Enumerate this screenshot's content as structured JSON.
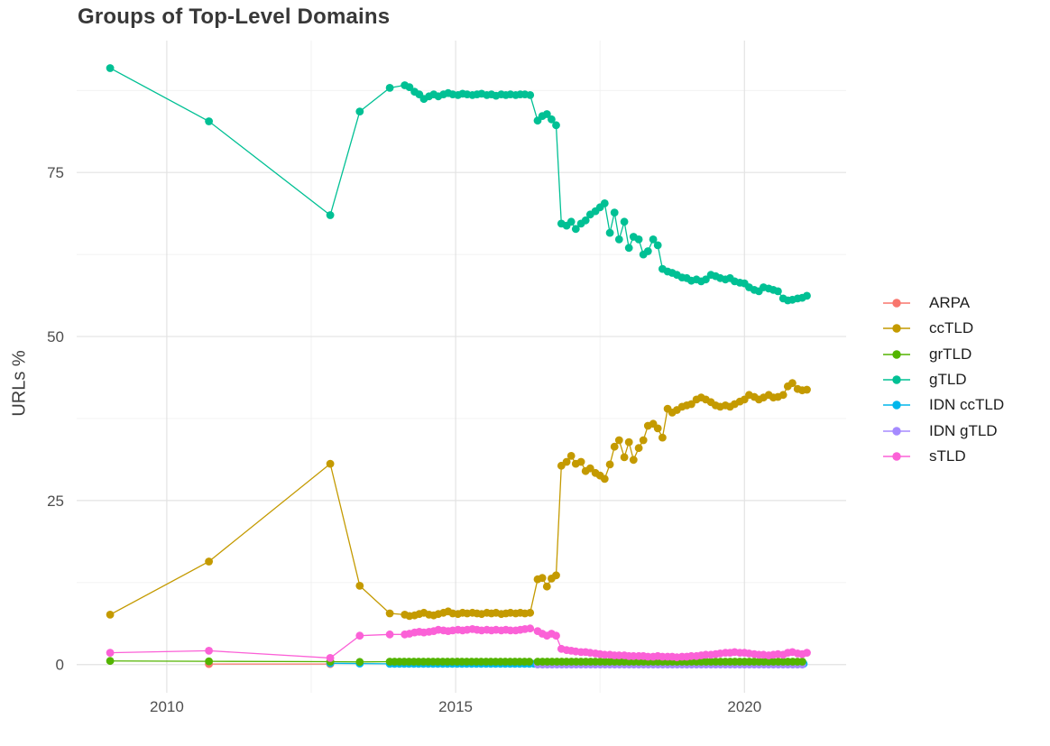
{
  "title": "Groups of Top-Level Domains",
  "y_axis": {
    "label": "URLs %",
    "ticks": [
      "0",
      "25",
      "50",
      "75"
    ]
  },
  "x_axis": {
    "ticks": [
      "2010",
      "2015",
      "2020"
    ]
  },
  "legend": {
    "position": "right",
    "entries": [
      {
        "label": "ARPA",
        "color": "#F8766D"
      },
      {
        "label": "ccTLD",
        "color": "#C49A00"
      },
      {
        "label": "grTLD",
        "color": "#53B400"
      },
      {
        "label": "gTLD",
        "color": "#00C094"
      },
      {
        "label": "IDN ccTLD",
        "color": "#00B6EB"
      },
      {
        "label": "IDN gTLD",
        "color": "#A58AFF"
      },
      {
        "label": "sTLD",
        "color": "#FB61D7"
      }
    ]
  },
  "chart_data": {
    "type": "line",
    "points_visible": true,
    "title": "Groups of Top-Level Domains",
    "xlabel": "",
    "ylabel": "URLs %",
    "xlim": [
      2008.44,
      2021.76
    ],
    "ylim": [
      -4.3,
      95.1
    ],
    "x_major": [
      2010,
      2015,
      2020
    ],
    "x_minor": [
      2012.5,
      2017.5
    ],
    "y_major": [
      0,
      25,
      50,
      75
    ],
    "y_minor": [
      12.5,
      37.5,
      62.5,
      87.5
    ],
    "grid": true,
    "legend_position": "right",
    "x_dense": [
      2009.02,
      2010.73,
      2012.83,
      2013.34,
      2013.86,
      2014.12,
      2014.2,
      2014.29,
      2014.37,
      2014.45,
      2014.54,
      2014.62,
      2014.7,
      2014.79,
      2014.87,
      2014.95,
      2015.04,
      2015.12,
      2015.2,
      2015.29,
      2015.37,
      2015.45,
      2015.54,
      2015.62,
      2015.7,
      2015.79,
      2015.87,
      2015.95,
      2016.04,
      2016.12,
      2016.2,
      2016.29,
      2016.42,
      2016.5,
      2016.58,
      2016.66,
      2016.74,
      2016.83,
      2016.92,
      2017.0,
      2017.08,
      2017.17,
      2017.25,
      2017.33,
      2017.42,
      2017.5,
      2017.58,
      2017.67,
      2017.75,
      2017.83,
      2017.92,
      2018.0,
      2018.08,
      2018.17,
      2018.25,
      2018.33,
      2018.42,
      2018.5,
      2018.58,
      2018.67,
      2018.75,
      2018.83,
      2018.92,
      2019.0,
      2019.08,
      2019.17,
      2019.25,
      2019.33,
      2019.42,
      2019.5,
      2019.58,
      2019.67,
      2019.75,
      2019.83,
      2019.92,
      2020.0,
      2020.08,
      2020.17,
      2020.25,
      2020.33,
      2020.42,
      2020.5,
      2020.58,
      2020.67,
      2020.75,
      2020.83,
      2020.92,
      2021.0,
      2021.08
    ],
    "series": [
      {
        "name": "ARPA",
        "color": "#F8766D",
        "x": [
          2010.73,
          2012.83
        ],
        "y": [
          0.08,
          0.08
        ]
      },
      {
        "name": "IDN ccTLD",
        "color": "#00B6EB",
        "x": [
          2012.83,
          2013.34
        ],
        "y": [
          0.2,
          0.15
        ],
        "runs": [
          {
            "from": 2013.86,
            "to": 2021.08,
            "step": 0.0833,
            "value": 0.12
          }
        ]
      },
      {
        "name": "IDN gTLD",
        "color": "#A58AFF",
        "runs": [
          {
            "from": 2016.42,
            "to": 2021.08,
            "step": 0.0833,
            "value": 0.0
          }
        ]
      },
      {
        "name": "grTLD",
        "color": "#53B400",
        "x": [
          2009.02,
          2010.73,
          2012.83,
          2013.34
        ],
        "y": [
          0.55,
          0.5,
          0.45,
          0.4
        ],
        "runs": [
          {
            "from": 2013.86,
            "to": 2016.33,
            "step": 0.0833,
            "value": 0.45
          },
          {
            "from": 2016.42,
            "to": 2021.08,
            "step": 0.0833,
            "value": 0.45
          }
        ]
      },
      {
        "name": "ccTLD",
        "color": "#C49A00",
        "x_ref": "x_dense",
        "y": [
          7.6,
          15.7,
          30.6,
          12.0,
          7.8,
          7.6,
          7.4,
          7.5,
          7.7,
          7.9,
          7.6,
          7.5,
          7.7,
          7.9,
          8.1,
          7.8,
          7.7,
          7.9,
          7.8,
          7.9,
          7.8,
          7.7,
          7.9,
          7.8,
          7.9,
          7.7,
          7.8,
          7.9,
          7.8,
          7.9,
          7.8,
          7.9,
          13.0,
          13.2,
          11.9,
          13.1,
          13.6,
          30.3,
          30.9,
          31.8,
          30.6,
          30.9,
          29.5,
          29.9,
          29.2,
          28.8,
          28.3,
          30.5,
          33.2,
          34.2,
          31.6,
          33.9,
          31.2,
          33.0,
          34.2,
          36.4,
          36.7,
          36.0,
          34.6,
          39.0,
          38.4,
          38.8,
          39.3,
          39.5,
          39.7,
          40.4,
          40.7,
          40.4,
          40.0,
          39.5,
          39.3,
          39.5,
          39.3,
          39.7,
          40.1,
          40.4,
          41.1,
          40.8,
          40.4,
          40.7,
          41.1,
          40.7,
          40.8,
          41.1,
          42.4,
          42.9,
          42.0,
          41.8,
          41.9
        ]
      },
      {
        "name": "gTLD",
        "color": "#00C094",
        "x_ref": "x_dense",
        "y": [
          90.9,
          82.8,
          68.5,
          84.3,
          87.9,
          88.3,
          88.0,
          87.3,
          86.9,
          86.2,
          86.6,
          86.9,
          86.6,
          86.9,
          87.1,
          86.9,
          86.8,
          87.0,
          86.9,
          86.8,
          86.9,
          87.0,
          86.8,
          86.9,
          86.7,
          86.9,
          86.8,
          86.9,
          86.8,
          86.9,
          86.9,
          86.8,
          82.9,
          83.6,
          83.9,
          83.1,
          82.2,
          67.2,
          66.9,
          67.5,
          66.4,
          67.2,
          67.7,
          68.6,
          69.1,
          69.7,
          70.3,
          65.8,
          68.9,
          64.8,
          67.5,
          63.5,
          65.2,
          64.8,
          62.5,
          63.0,
          64.8,
          63.9,
          60.3,
          59.9,
          59.7,
          59.4,
          59.0,
          58.9,
          58.5,
          58.7,
          58.4,
          58.7,
          59.4,
          59.2,
          58.9,
          58.7,
          58.9,
          58.4,
          58.2,
          58.1,
          57.5,
          57.1,
          56.9,
          57.5,
          57.3,
          57.1,
          56.9,
          55.8,
          55.5,
          55.6,
          55.8,
          55.9,
          56.2
        ]
      },
      {
        "name": "sTLD",
        "color": "#FB61D7",
        "x_ref": "x_dense",
        "y": [
          1.8,
          2.1,
          1.0,
          4.4,
          4.6,
          4.6,
          4.7,
          4.9,
          5.0,
          4.9,
          5.0,
          5.1,
          5.3,
          5.2,
          5.1,
          5.2,
          5.3,
          5.2,
          5.3,
          5.4,
          5.3,
          5.2,
          5.3,
          5.2,
          5.3,
          5.2,
          5.3,
          5.2,
          5.2,
          5.3,
          5.4,
          5.5,
          5.1,
          4.7,
          4.4,
          4.7,
          4.4,
          2.4,
          2.2,
          2.1,
          2.0,
          1.9,
          1.9,
          1.8,
          1.7,
          1.6,
          1.5,
          1.5,
          1.4,
          1.4,
          1.4,
          1.3,
          1.3,
          1.3,
          1.3,
          1.2,
          1.2,
          1.3,
          1.2,
          1.2,
          1.2,
          1.1,
          1.2,
          1.2,
          1.3,
          1.3,
          1.4,
          1.5,
          1.5,
          1.6,
          1.7,
          1.8,
          1.8,
          1.9,
          1.8,
          1.8,
          1.7,
          1.6,
          1.5,
          1.5,
          1.4,
          1.5,
          1.6,
          1.5,
          1.8,
          1.9,
          1.7,
          1.6,
          1.8
        ]
      }
    ]
  }
}
